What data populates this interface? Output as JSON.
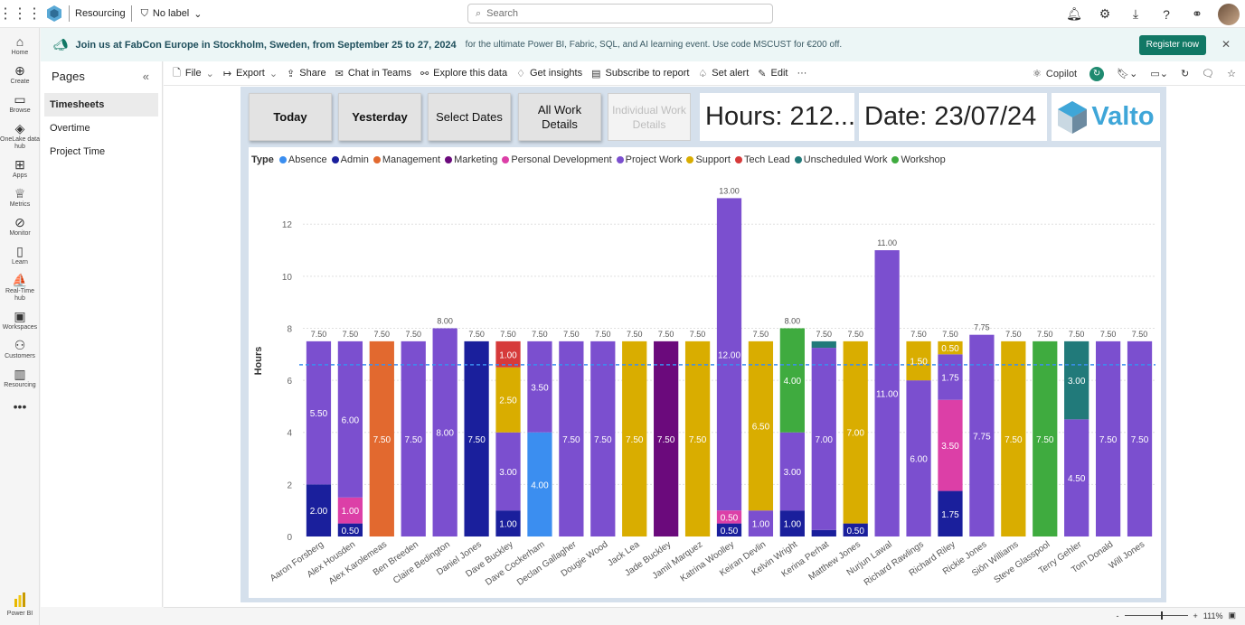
{
  "topbar": {
    "workspace": "Resourcing",
    "label": "No label",
    "search_placeholder": "Search"
  },
  "leftnav": [
    {
      "label": "Home",
      "icon": "home-icon",
      "glyph": "⌂"
    },
    {
      "label": "Create",
      "icon": "create-icon",
      "glyph": "⊕"
    },
    {
      "label": "Browse",
      "icon": "browse-icon",
      "glyph": "▭"
    },
    {
      "label": "OneLake data hub",
      "icon": "onelake-icon",
      "glyph": "◈"
    },
    {
      "label": "Apps",
      "icon": "apps-icon",
      "glyph": "⊞"
    },
    {
      "label": "Metrics",
      "icon": "metrics-icon",
      "glyph": "♕"
    },
    {
      "label": "Monitor",
      "icon": "monitor-icon",
      "glyph": "⊘"
    },
    {
      "label": "Learn",
      "icon": "learn-icon",
      "glyph": "▯"
    },
    {
      "label": "Real-Time hub",
      "icon": "realtime-icon",
      "glyph": "⛵"
    },
    {
      "label": "Workspaces",
      "icon": "workspaces-icon",
      "glyph": "▣"
    },
    {
      "label": "Customers",
      "icon": "customers-icon",
      "glyph": "⚇"
    },
    {
      "label": "Resourcing",
      "icon": "resourcing-icon",
      "glyph": "▥"
    }
  ],
  "leftnav_more": "•••",
  "leftnav_bottom": "Power BI",
  "banner": {
    "bold_text": "Join us at FabCon Europe in Stockholm, Sweden, from September 25 to 27, 2024",
    "rest_text": "for the ultimate Power BI, Fabric, SQL, and AI learning event. Use code MSCUST for €200 off.",
    "button": "Register now"
  },
  "pages": {
    "title": "Pages",
    "items": [
      "Timesheets",
      "Overtime",
      "Project Time"
    ]
  },
  "toolbar": {
    "items": [
      {
        "label": "File",
        "icon": "file-icon",
        "glyph": "🗋",
        "dropdown": true
      },
      {
        "label": "Export",
        "icon": "export-icon",
        "glyph": "↦",
        "dropdown": true
      },
      {
        "label": "Share",
        "icon": "share-icon",
        "glyph": "⇪",
        "dropdown": false
      },
      {
        "label": "Chat in Teams",
        "icon": "teams-icon",
        "glyph": "✉",
        "dropdown": false
      },
      {
        "label": "Explore this data",
        "icon": "explore-icon",
        "glyph": "⚯",
        "dropdown": false
      },
      {
        "label": "Get insights",
        "icon": "insights-icon",
        "glyph": "♢",
        "dropdown": false
      },
      {
        "label": "Subscribe to report",
        "icon": "subscribe-icon",
        "glyph": "▤",
        "dropdown": false
      },
      {
        "label": "Set alert",
        "icon": "alert-icon",
        "glyph": "♤",
        "dropdown": false
      },
      {
        "label": "Edit",
        "icon": "edit-icon",
        "glyph": "✎",
        "dropdown": false
      }
    ],
    "more": "···",
    "copilot": "Copilot"
  },
  "report": {
    "buttons": [
      "Today",
      "Yesterday",
      "Select Dates",
      "All Work Details",
      "Individual Work Details"
    ],
    "hours_card": "Hours: 212....",
    "date_card": "Date: 23/07/24",
    "logo_text": "Valto"
  },
  "zoom": "111%",
  "chart_data": {
    "type": "bar",
    "stacked": true,
    "legend_title": "Type",
    "legend_placement": "top-left",
    "ylabel": "Hours",
    "ylim": [
      0,
      13.5
    ],
    "yticks": [
      0,
      2,
      4,
      6,
      8,
      10,
      12
    ],
    "grid": true,
    "average_line": 6.6,
    "types": [
      {
        "name": "Absence",
        "color": "#3b8ef0"
      },
      {
        "name": "Admin",
        "color": "#1a1f9c"
      },
      {
        "name": "Management",
        "color": "#e2692f"
      },
      {
        "name": "Marketing",
        "color": "#6b0a7c"
      },
      {
        "name": "Personal Development",
        "color": "#dc3fa7"
      },
      {
        "name": "Project Work",
        "color": "#7b4fcf"
      },
      {
        "name": "Support",
        "color": "#d9ad00"
      },
      {
        "name": "Tech Lead",
        "color": "#d63a3a"
      },
      {
        "name": "Unscheduled Work",
        "color": "#217a7a"
      },
      {
        "name": "Workshop",
        "color": "#3fab3f"
      }
    ],
    "people": [
      {
        "name": "Aaron Forsberg",
        "total": "7.50",
        "segments": [
          {
            "type": "Admin",
            "value": 2.0,
            "label": "2.00"
          },
          {
            "type": "Project Work",
            "value": 5.5,
            "label": "5.50"
          }
        ]
      },
      {
        "name": "Alex Housden",
        "total": "7.50",
        "segments": [
          {
            "type": "Admin",
            "value": 0.5,
            "label": "0.50"
          },
          {
            "type": "Personal Development",
            "value": 1.0,
            "label": "1.00"
          },
          {
            "type": "Project Work",
            "value": 6.0,
            "label": "6.00"
          }
        ]
      },
      {
        "name": "Alex Karolemeas",
        "total": "7.50",
        "segments": [
          {
            "type": "Management",
            "value": 7.5,
            "label": "7.50"
          }
        ]
      },
      {
        "name": "Ben Breeden",
        "total": "7.50",
        "segments": [
          {
            "type": "Project Work",
            "value": 7.5,
            "label": "7.50"
          }
        ]
      },
      {
        "name": "Claire Bedington",
        "total": "8.00",
        "segments": [
          {
            "type": "Project Work",
            "value": 8.0,
            "label": "8.00"
          }
        ]
      },
      {
        "name": "Daniel Jones",
        "total": "7.50",
        "segments": [
          {
            "type": "Admin",
            "value": 7.5,
            "label": "7.50"
          }
        ]
      },
      {
        "name": "Dave Buckley",
        "total": "7.50",
        "segments": [
          {
            "type": "Admin",
            "value": 1.0,
            "label": "1.00"
          },
          {
            "type": "Project Work",
            "value": 3.0,
            "label": "3.00"
          },
          {
            "type": "Support",
            "value": 2.5,
            "label": "2.50"
          },
          {
            "type": "Tech Lead",
            "value": 1.0,
            "label": "1.00"
          }
        ]
      },
      {
        "name": "Dave Cockerham",
        "total": "7.50",
        "segments": [
          {
            "type": "Absence",
            "value": 4.0,
            "label": "4.00"
          },
          {
            "type": "Project Work",
            "value": 3.5,
            "label": "3.50"
          }
        ]
      },
      {
        "name": "Declan Gallagher",
        "total": "7.50",
        "segments": [
          {
            "type": "Project Work",
            "value": 7.5,
            "label": "7.50"
          }
        ]
      },
      {
        "name": "Dougie Wood",
        "total": "7.50",
        "segments": [
          {
            "type": "Project Work",
            "value": 7.5,
            "label": "7.50"
          }
        ]
      },
      {
        "name": "Jack Lea",
        "total": "7.50",
        "segments": [
          {
            "type": "Support",
            "value": 7.5,
            "label": "7.50"
          }
        ]
      },
      {
        "name": "Jade Buckley",
        "total": "7.50",
        "segments": [
          {
            "type": "Marketing",
            "value": 7.5,
            "label": "7.50"
          }
        ]
      },
      {
        "name": "Jamil Marquez",
        "total": "7.50",
        "segments": [
          {
            "type": "Support",
            "value": 7.5,
            "label": "7.50"
          }
        ]
      },
      {
        "name": "Katrina Woolley",
        "total": "13.00",
        "segments": [
          {
            "type": "Admin",
            "value": 0.5,
            "label": "0.50"
          },
          {
            "type": "Personal Development",
            "value": 0.5,
            "label": "0.50"
          },
          {
            "type": "Project Work",
            "value": 12.0,
            "label": "12.00"
          }
        ]
      },
      {
        "name": "Keiran Devlin",
        "total": "7.50",
        "segments": [
          {
            "type": "Project Work",
            "value": 1.0,
            "label": "1.00"
          },
          {
            "type": "Support",
            "value": 6.5,
            "label": "6.50"
          }
        ]
      },
      {
        "name": "Kelvin Wright",
        "total": "8.00",
        "segments": [
          {
            "type": "Admin",
            "value": 1.0,
            "label": "1.00"
          },
          {
            "type": "Project Work",
            "value": 3.0,
            "label": "3.00"
          },
          {
            "type": "Workshop",
            "value": 4.0,
            "label": "4.00"
          }
        ]
      },
      {
        "name": "Kerina Perhat",
        "total": "7.50",
        "segments": [
          {
            "type": "Admin",
            "value": 0.25,
            "label": ""
          },
          {
            "type": "Project Work",
            "value": 7.0,
            "label": "7.00"
          },
          {
            "type": "Unscheduled Work",
            "value": 0.25,
            "label": ""
          }
        ]
      },
      {
        "name": "Matthew Jones",
        "total": "7.50",
        "segments": [
          {
            "type": "Admin",
            "value": 0.5,
            "label": "0.50"
          },
          {
            "type": "Support",
            "value": 7.0,
            "label": "7.00"
          }
        ]
      },
      {
        "name": "Nurjun Lawal",
        "total": "11.00",
        "segments": [
          {
            "type": "Project Work",
            "value": 11.0,
            "label": "11.00"
          }
        ]
      },
      {
        "name": "Richard Rawlings",
        "total": "7.50",
        "segments": [
          {
            "type": "Project Work",
            "value": 6.0,
            "label": "6.00"
          },
          {
            "type": "Support",
            "value": 1.5,
            "label": "1.50"
          }
        ]
      },
      {
        "name": "Richard Riley",
        "total": "7.50",
        "segments": [
          {
            "type": "Admin",
            "value": 1.75,
            "label": "1.75"
          },
          {
            "type": "Personal Development",
            "value": 3.5,
            "label": "3.50"
          },
          {
            "type": "Project Work",
            "value": 1.75,
            "label": "1.75"
          },
          {
            "type": "Support",
            "value": 0.5,
            "label": "0.50"
          }
        ]
      },
      {
        "name": "Rickie Jones",
        "total": "7.75",
        "segments": [
          {
            "type": "Project Work",
            "value": 7.75,
            "label": "7.75"
          }
        ]
      },
      {
        "name": "Siôn Williams",
        "total": "7.50",
        "segments": [
          {
            "type": "Support",
            "value": 7.5,
            "label": "7.50"
          }
        ]
      },
      {
        "name": "Steve Glasspool",
        "total": "7.50",
        "segments": [
          {
            "type": "Workshop",
            "value": 7.5,
            "label": "7.50"
          }
        ]
      },
      {
        "name": "Terry Gehler",
        "total": "7.50",
        "segments": [
          {
            "type": "Project Work",
            "value": 4.5,
            "label": "4.50"
          },
          {
            "type": "Unscheduled Work",
            "value": 3.0,
            "label": "3.00"
          }
        ]
      },
      {
        "name": "Tom Donald",
        "total": "7.50",
        "segments": [
          {
            "type": "Project Work",
            "value": 7.5,
            "label": "7.50"
          }
        ]
      },
      {
        "name": "Will Jones",
        "total": "7.50",
        "segments": [
          {
            "type": "Project Work",
            "value": 7.5,
            "label": "7.50"
          }
        ]
      }
    ]
  }
}
